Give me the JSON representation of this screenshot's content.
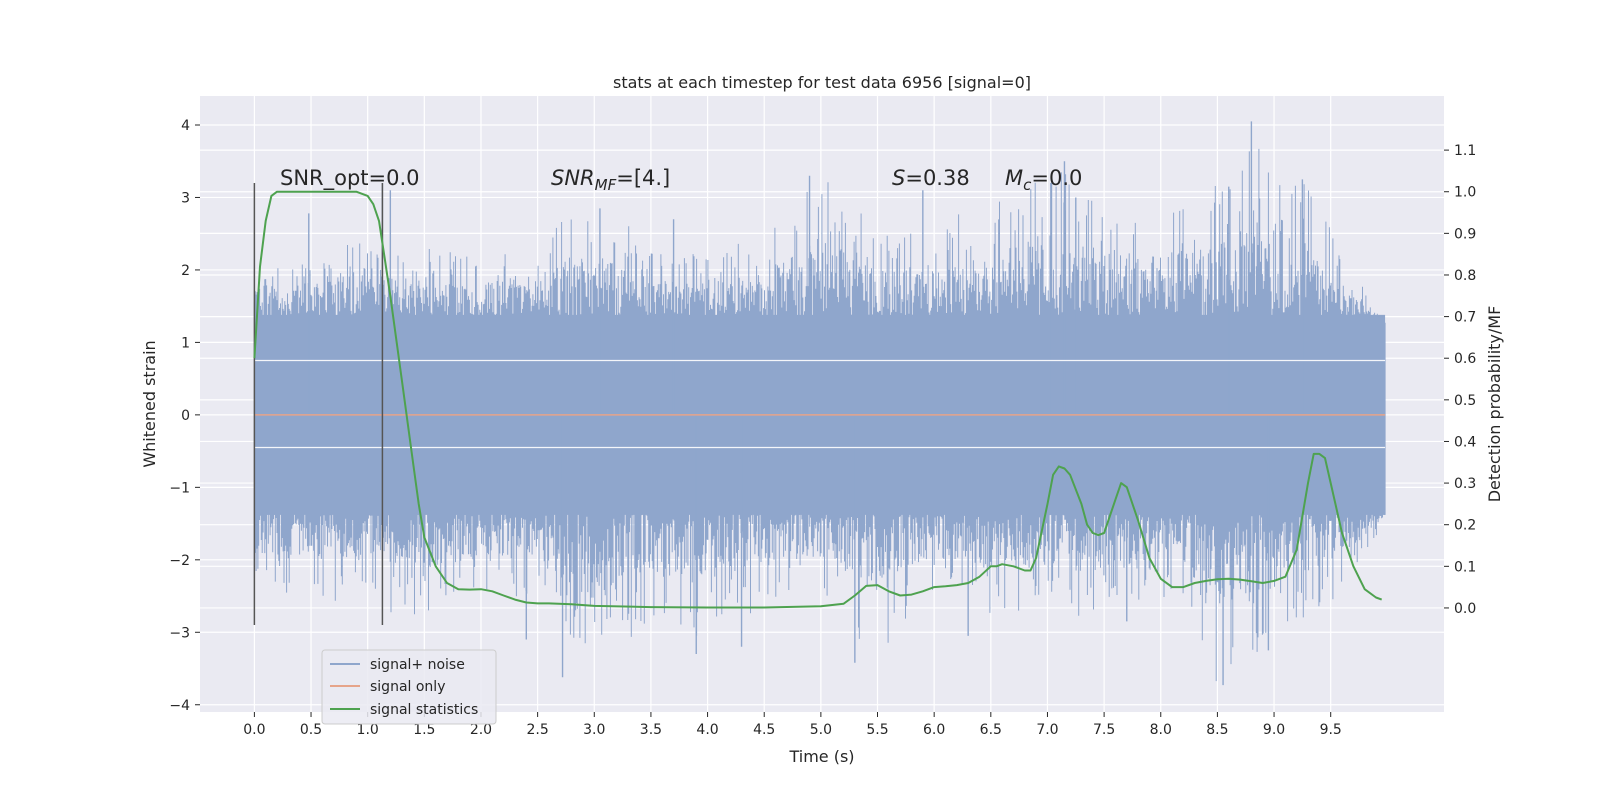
{
  "chart_data": {
    "type": "line",
    "title": "stats at each timestep for test data 6956 [signal=0]",
    "xlabel": "Time (s)",
    "ylabel": "Whitened strain",
    "y2label": "Detection probability/MF",
    "xlim": [
      -0.48,
      10.5
    ],
    "ylim": [
      -4.1,
      4.4
    ],
    "y2lim": [
      -0.25,
      1.23
    ],
    "x_ticks": [
      0.0,
      0.5,
      1.0,
      1.5,
      2.0,
      2.5,
      3.0,
      3.5,
      4.0,
      4.5,
      5.0,
      5.5,
      6.0,
      6.5,
      7.0,
      7.5,
      8.0,
      8.5,
      9.0,
      9.5
    ],
    "y_ticks": [
      -4,
      -3,
      -2,
      -1,
      0,
      1,
      2,
      3,
      4
    ],
    "y2_ticks": [
      0.0,
      0.1,
      0.2,
      0.3,
      0.4,
      0.5,
      0.6,
      0.7,
      0.8,
      0.9,
      1.0,
      1.1
    ],
    "x_tick_labels": [
      "0.0",
      "0.5",
      "1.0",
      "1.5",
      "2.0",
      "2.5",
      "3.0",
      "3.5",
      "4.0",
      "4.5",
      "5.0",
      "5.5",
      "6.0",
      "6.5",
      "7.0",
      "7.5",
      "8.0",
      "8.5",
      "9.0",
      "9.5"
    ],
    "y_tick_labels": [
      "−4",
      "−3",
      "−2",
      "−1",
      "0",
      "1",
      "2",
      "3",
      "4"
    ],
    "y2_tick_labels": [
      "0.0",
      "0.1",
      "0.2",
      "0.3",
      "0.4",
      "0.5",
      "0.6",
      "0.7",
      "0.8",
      "0.9",
      "1.0",
      "1.1"
    ],
    "grid": true,
    "legend_position": "lower-left",
    "annotations": {
      "snr_opt": "SNR_opt=0.0",
      "snr_mf_label": "SNR",
      "snr_mf_sub": "MF",
      "snr_mf_value": "=[4.]",
      "s_label": "S",
      "s_value": "=0.38",
      "mc_label": "M",
      "mc_sub": "c",
      "mc_value": "=0.0"
    },
    "vertical_lines": [
      {
        "x": 0.0,
        "ymin": -2.9,
        "ymax": 3.2
      },
      {
        "x": 1.13,
        "ymin": -2.9,
        "ymax": 3.2
      }
    ],
    "series": [
      {
        "name": "signal+ noise",
        "axis": "left",
        "color": "#8fa6cc",
        "x_range": [
          0.0,
          9.98
        ],
        "envelope_x": [
          0.0,
          0.5,
          1.0,
          1.5,
          2.0,
          2.5,
          3.0,
          3.5,
          4.0,
          4.5,
          5.0,
          5.5,
          6.0,
          6.5,
          7.0,
          7.5,
          8.0,
          8.5,
          9.0,
          9.5,
          9.98
        ],
        "envelope_high": [
          2.2,
          2.3,
          2.4,
          2.3,
          2.2,
          2.4,
          3.1,
          2.3,
          2.2,
          2.5,
          3.3,
          2.6,
          2.7,
          2.9,
          3.5,
          3.0,
          2.9,
          3.2,
          4.0,
          2.6,
          1.2
        ],
        "envelope_low": [
          -2.4,
          -2.5,
          -2.7,
          -2.8,
          -2.4,
          -2.6,
          -3.6,
          -2.8,
          -3.2,
          -2.6,
          -2.5,
          -3.4,
          -2.4,
          -2.8,
          -2.7,
          -2.9,
          -2.5,
          -3.7,
          -3.1,
          -2.6,
          -1.5
        ],
        "peak_points": [
          [
            0.48,
            2.78
          ],
          [
            1.13,
            3.2
          ],
          [
            1.2,
            3.1
          ],
          [
            3.05,
            2.85
          ],
          [
            3.7,
            2.7
          ],
          [
            4.9,
            3.3
          ],
          [
            5.9,
            3.1
          ],
          [
            7.03,
            3.2
          ],
          [
            7.15,
            3.5
          ],
          [
            7.25,
            3.0
          ],
          [
            8.6,
            3.15
          ],
          [
            8.8,
            4.05
          ],
          [
            9.25,
            3.25
          ],
          [
            2.72,
            -3.62
          ],
          [
            3.9,
            -3.3
          ],
          [
            4.3,
            -3.2
          ],
          [
            5.3,
            -3.42
          ],
          [
            8.55,
            -3.73
          ],
          [
            8.95,
            -3.25
          ],
          [
            2.4,
            -3.1
          ],
          [
            6.3,
            -3.05
          ],
          [
            7.7,
            -2.85
          ]
        ]
      },
      {
        "name": "signal only",
        "axis": "left",
        "color": "#e6a48a",
        "x": [
          0.0,
          9.98
        ],
        "y": [
          0.0,
          0.0
        ]
      },
      {
        "name": "signal statistics",
        "axis": "right",
        "color": "#4ea24f",
        "x": [
          0.0,
          0.05,
          0.1,
          0.15,
          0.2,
          0.3,
          0.5,
          0.7,
          0.9,
          1.0,
          1.05,
          1.1,
          1.15,
          1.2,
          1.3,
          1.4,
          1.45,
          1.5,
          1.6,
          1.7,
          1.8,
          1.9,
          2.0,
          2.1,
          2.2,
          2.3,
          2.4,
          2.5,
          2.6,
          2.8,
          3.0,
          3.5,
          4.0,
          4.5,
          5.0,
          5.2,
          5.3,
          5.4,
          5.5,
          5.6,
          5.7,
          5.8,
          5.9,
          6.0,
          6.1,
          6.2,
          6.3,
          6.4,
          6.5,
          6.55,
          6.6,
          6.7,
          6.8,
          6.85,
          6.9,
          7.0,
          7.05,
          7.1,
          7.15,
          7.2,
          7.3,
          7.35,
          7.4,
          7.45,
          7.5,
          7.6,
          7.65,
          7.7,
          7.8,
          7.9,
          8.0,
          8.1,
          8.2,
          8.3,
          8.4,
          8.5,
          8.6,
          8.7,
          8.8,
          8.9,
          9.0,
          9.1,
          9.2,
          9.3,
          9.35,
          9.4,
          9.45,
          9.5,
          9.6,
          9.7,
          9.8,
          9.9,
          9.95
        ],
        "y": [
          0.6,
          0.82,
          0.93,
          0.99,
          1.0,
          1.0,
          1.0,
          1.0,
          1.0,
          0.99,
          0.97,
          0.93,
          0.84,
          0.75,
          0.55,
          0.35,
          0.25,
          0.17,
          0.1,
          0.06,
          0.045,
          0.044,
          0.045,
          0.04,
          0.03,
          0.02,
          0.013,
          0.011,
          0.011,
          0.009,
          0.005,
          0.002,
          0.001,
          0.001,
          0.004,
          0.01,
          0.03,
          0.053,
          0.055,
          0.04,
          0.03,
          0.032,
          0.04,
          0.05,
          0.052,
          0.055,
          0.06,
          0.075,
          0.1,
          0.1,
          0.105,
          0.1,
          0.09,
          0.09,
          0.12,
          0.25,
          0.32,
          0.34,
          0.335,
          0.32,
          0.25,
          0.2,
          0.18,
          0.175,
          0.18,
          0.26,
          0.3,
          0.29,
          0.21,
          0.12,
          0.07,
          0.05,
          0.05,
          0.06,
          0.065,
          0.069,
          0.07,
          0.068,
          0.064,
          0.06,
          0.065,
          0.075,
          0.14,
          0.3,
          0.37,
          0.37,
          0.36,
          0.3,
          0.18,
          0.1,
          0.045,
          0.025,
          0.02
        ]
      }
    ]
  }
}
